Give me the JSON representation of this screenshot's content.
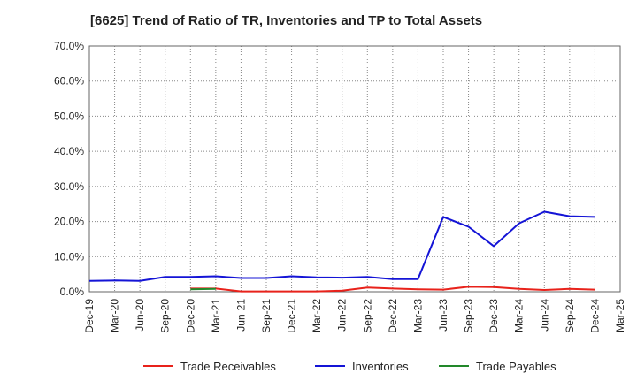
{
  "chart_data": {
    "type": "line",
    "title": "[6625]  Trend of Ratio of TR, Inventories and TP to Total Assets",
    "xlabel": "",
    "ylabel": "",
    "ylim": [
      0,
      70
    ],
    "y_ticks": [
      "0.0%",
      "10.0%",
      "20.0%",
      "30.0%",
      "40.0%",
      "50.0%",
      "60.0%",
      "70.0%"
    ],
    "categories": [
      "Dec-19",
      "Mar-20",
      "Jun-20",
      "Sep-20",
      "Dec-20",
      "Mar-21",
      "Jun-21",
      "Sep-21",
      "Dec-21",
      "Mar-22",
      "Jun-22",
      "Sep-22",
      "Dec-22",
      "Mar-23",
      "Jun-23",
      "Sep-23",
      "Dec-23",
      "Mar-24",
      "Jun-24",
      "Sep-24",
      "Dec-24",
      "Mar-25"
    ],
    "grid": true,
    "legend_position": "bottom",
    "series": [
      {
        "name": "Trade Receivables",
        "color": "#e8221b",
        "values": [
          null,
          null,
          null,
          null,
          0.9,
          0.9,
          0.1,
          0.1,
          0.1,
          0.1,
          0.3,
          1.2,
          0.9,
          0.7,
          0.6,
          1.4,
          1.3,
          0.8,
          0.5,
          0.8,
          0.6,
          null
        ]
      },
      {
        "name": "Inventories",
        "color": "#1414d6",
        "values": [
          3.1,
          3.2,
          3.1,
          4.2,
          4.2,
          4.4,
          3.9,
          3.9,
          4.4,
          4.1,
          4.0,
          4.2,
          3.6,
          3.6,
          21.3,
          18.5,
          13.0,
          19.5,
          22.8,
          21.5,
          21.3,
          null
        ]
      },
      {
        "name": "Trade Payables",
        "color": "#22882a",
        "values": [
          null,
          null,
          null,
          null,
          0.7,
          0.8,
          null,
          null,
          null,
          null,
          null,
          null,
          null,
          null,
          null,
          null,
          null,
          null,
          null,
          null,
          null,
          null
        ]
      }
    ]
  }
}
